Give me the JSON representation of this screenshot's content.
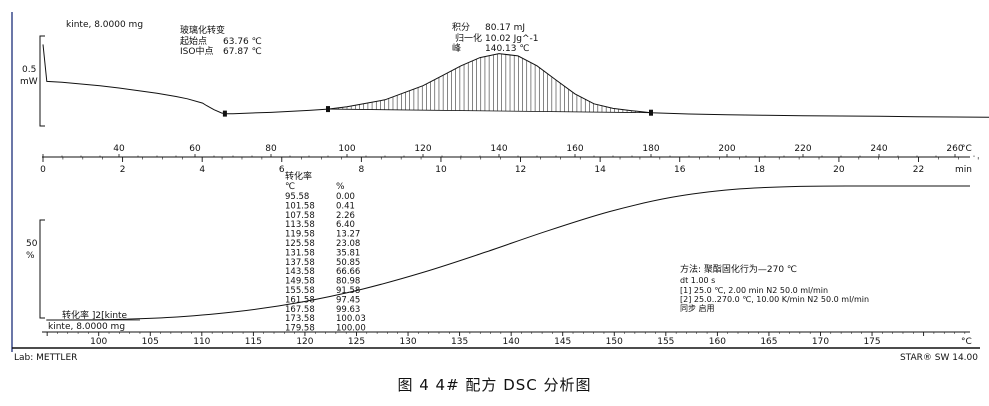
{
  "chart_data": [
    {
      "type": "line",
      "title": "",
      "sample_label": "kinte, 8.0000 mg",
      "y_scale": {
        "value": "0.5",
        "unit": "mW"
      },
      "x_axis_temp": {
        "unit": "°C",
        "ticks": [
          40,
          60,
          80,
          100,
          120,
          140,
          160,
          180,
          200,
          220,
          240,
          260
        ],
        "range": [
          20,
          270
        ]
      },
      "x_axis_time": {
        "unit": "min",
        "ticks": [
          0,
          2,
          4,
          6,
          8,
          10,
          12,
          14,
          16,
          18,
          20,
          22
        ],
        "range": [
          0,
          24.5
        ]
      },
      "glass_transition": {
        "title": "玻璃化转变",
        "onset_label": "起始点",
        "onset_value": "63.76 ℃",
        "iso_label": "ISO中点",
        "iso_value": "67.87 ℃"
      },
      "peak_integration": {
        "integral_label": "积分",
        "integral_value": "80.17 mJ",
        "norm_label": "归一化",
        "norm_value": "10.02 Jg^-1",
        "peak_label": "峰",
        "peak_value": "140.13 ℃",
        "limits": [
          95,
          180
        ]
      },
      "heat_flow": {
        "x": [
          20,
          21,
          25,
          30,
          35,
          40,
          45,
          50,
          55,
          58,
          62,
          63,
          65,
          67,
          68,
          70,
          75,
          80,
          85,
          90,
          95,
          100,
          110,
          120,
          125,
          130,
          135,
          140,
          145,
          150,
          155,
          160,
          165,
          170,
          175,
          180,
          185,
          190,
          200,
          210,
          220,
          230,
          240,
          250,
          260,
          270
        ],
        "y": [
          2.2,
          1.08,
          1.05,
          1.0,
          0.95,
          0.88,
          0.8,
          0.72,
          0.62,
          0.55,
          0.42,
          0.35,
          0.22,
          0.12,
          0.1,
          0.1,
          0.12,
          0.14,
          0.17,
          0.2,
          0.24,
          0.31,
          0.52,
          0.95,
          1.25,
          1.55,
          1.8,
          1.92,
          1.85,
          1.55,
          1.12,
          0.7,
          0.4,
          0.26,
          0.19,
          0.13,
          0.11,
          0.09,
          0.07,
          0.05,
          0.04,
          0.03,
          0.02,
          0.01,
          0.0,
          -0.01
        ]
      },
      "baseline": {
        "x": [
          95,
          180
        ],
        "y": [
          0.24,
          0.13
        ]
      }
    },
    {
      "type": "line",
      "title": "",
      "curve_label": "转化率 ]2[kinte",
      "sample_label": "kinte, 8.0000 mg",
      "y_scale": {
        "value": "50",
        "unit": "%"
      },
      "x_axis": {
        "unit": "°C",
        "ticks": [
          100,
          105,
          110,
          115,
          120,
          125,
          130,
          135,
          140,
          145,
          150,
          155,
          160,
          165,
          170,
          175
        ],
        "range": [
          94.5,
          184.5
        ]
      },
      "table": {
        "title": "转化率",
        "col_temp": "℃",
        "col_conv": "%",
        "temps": [
          "95.58",
          "101.58",
          "107.58",
          "113.58",
          "119.58",
          "125.58",
          "131.58",
          "137.58",
          "143.58",
          "149.58",
          "155.58",
          "161.58",
          "167.58",
          "173.58",
          "179.58"
        ],
        "conv": [
          "0.00",
          "0.41",
          "2.26",
          "6.40",
          "13.27",
          "23.08",
          "35.81",
          "50.85",
          "66.66",
          "80.98",
          "91.58",
          "97.45",
          "99.63",
          "100.03",
          "100.00"
        ]
      },
      "series": [
        {
          "x": [
            95.58,
            101.58,
            107.58,
            113.58,
            119.58,
            125.58,
            131.58,
            137.58,
            143.58,
            149.58,
            155.58,
            161.58,
            167.58,
            173.58,
            179.58,
            184.5
          ],
          "y": [
            0.0,
            0.41,
            2.26,
            6.4,
            13.27,
            23.08,
            35.81,
            50.85,
            66.66,
            80.98,
            91.58,
            97.45,
            99.63,
            100.03,
            100.0,
            100.0
          ]
        }
      ],
      "method": {
        "title": "方法: 聚酯固化行为—270 ℃",
        "dt": "dt 1.00 s",
        "step1": "[1] 25.0 ℃, 2.00 min   N2 50.0 ml/min",
        "step2": "[2] 25.0..270.0 ℃, 10.00 K/min   N2 50.0 ml/min",
        "sync": "同步 启用"
      }
    }
  ],
  "footer": {
    "lab": "Lab: METTLER",
    "software": "STAR® SW 14.00"
  },
  "caption": "图 4  4# 配方 DSC 分析图"
}
